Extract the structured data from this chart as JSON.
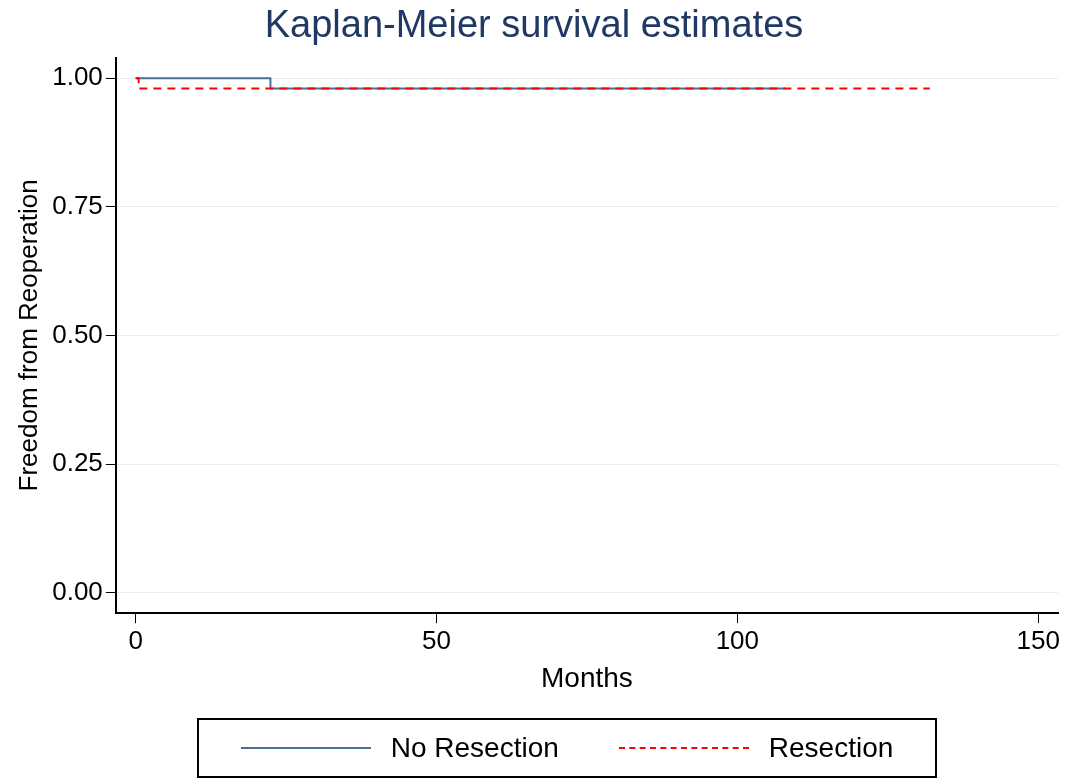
{
  "chart_data": {
    "type": "step",
    "title": "Kaplan-Meier survival estimates",
    "xlabel": "Months",
    "ylabel": "Freedom from Reoperation",
    "series": [
      {
        "name": "No Resection",
        "color": "#4a6f96",
        "line_style": "solid",
        "x": [
          0,
          22.4,
          108
        ],
        "values": [
          1,
          0.98,
          0.98
        ]
      },
      {
        "name": "Resection",
        "color": "#ff0000",
        "line_style": "dashed",
        "x": [
          0,
          0.5,
          132
        ],
        "values": [
          1,
          0.98,
          0.98
        ]
      }
    ],
    "xlim": [
      -3.3,
      153.3
    ],
    "xticks": [
      0,
      50,
      100,
      150
    ],
    "ylim": [
      -0.04,
      1.04
    ],
    "yticks": [
      {
        "value": 0,
        "label": "0.00"
      },
      {
        "value": 0.25,
        "label": "0.25"
      },
      {
        "value": 0.5,
        "label": "0.50"
      },
      {
        "value": 0.75,
        "label": "0.75"
      },
      {
        "value": 1,
        "label": "1.00"
      }
    ],
    "grid": "y",
    "legend": "bottom"
  }
}
